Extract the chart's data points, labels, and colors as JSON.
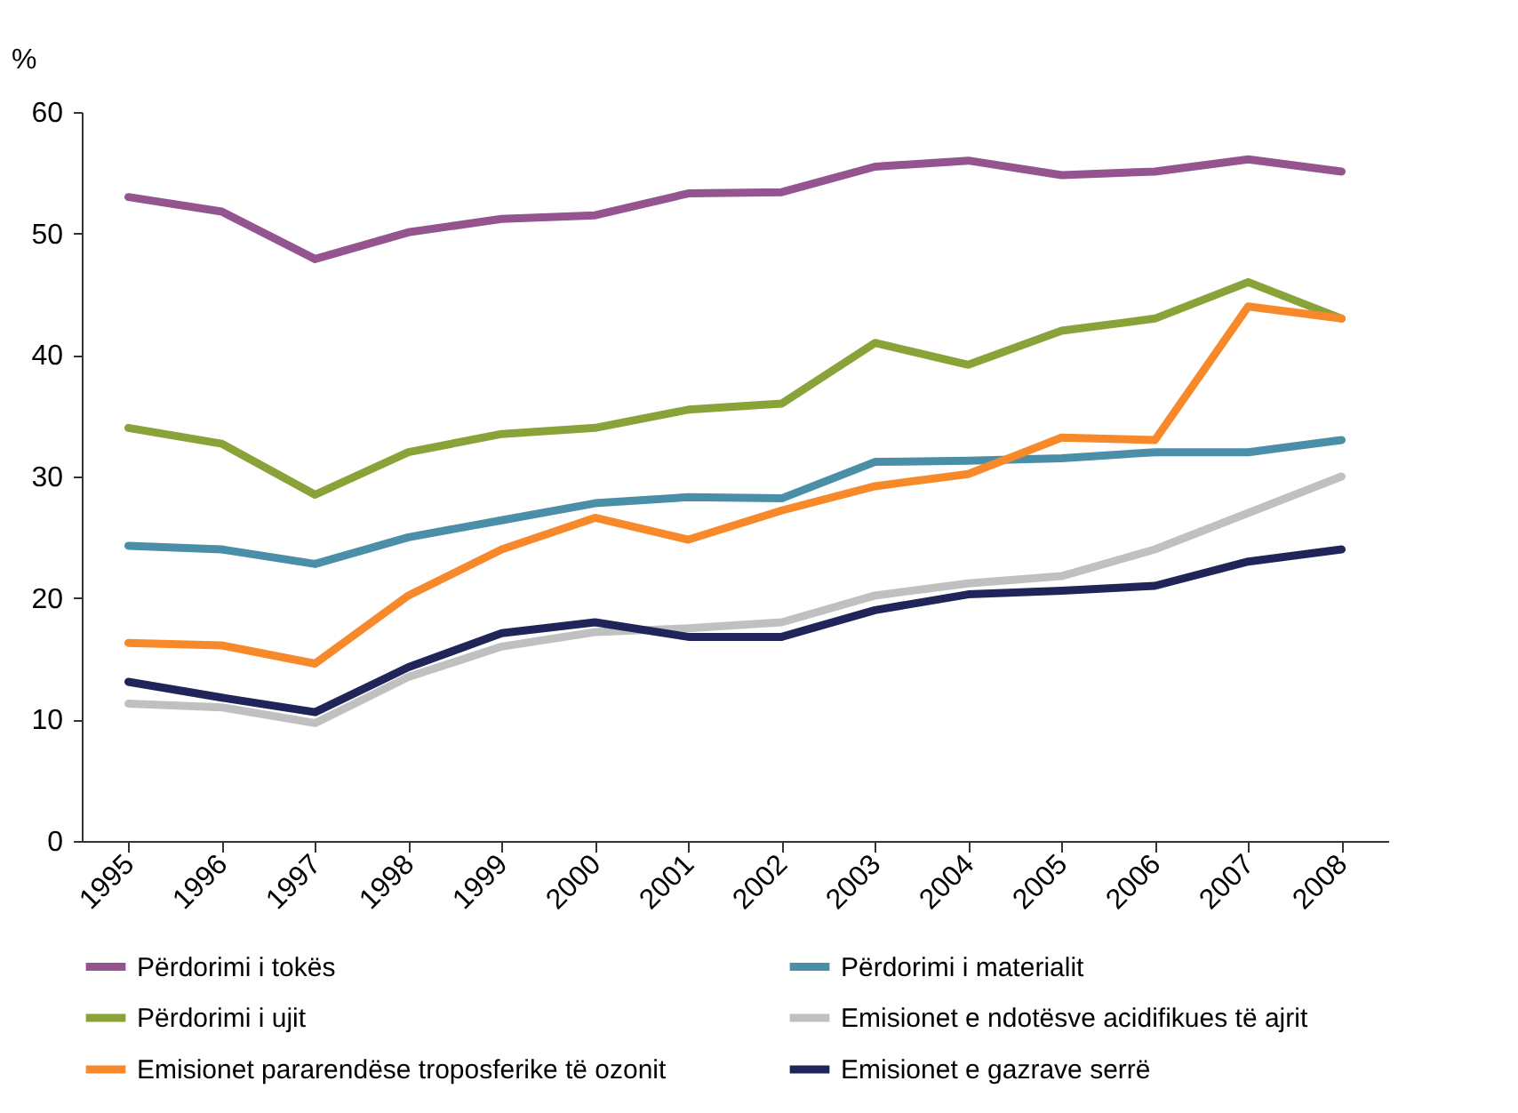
{
  "chart_data": {
    "type": "line",
    "ylabel": "%",
    "categories": [
      "1995",
      "1996",
      "1997",
      "1998",
      "1999",
      "2000",
      "2001",
      "2002",
      "2003",
      "2004",
      "2005",
      "2006",
      "2007",
      "2008"
    ],
    "ylim": [
      0,
      60
    ],
    "yticks": [
      0,
      10,
      20,
      30,
      40,
      50,
      60
    ],
    "grid": false,
    "legend": "bottom",
    "line_style": "solid",
    "series": [
      {
        "name": "Përdorimi i tokës",
        "color": "#93548f",
        "values": [
          53,
          51.8,
          47.9,
          50.1,
          51.2,
          51.5,
          53.3,
          53.4,
          55.5,
          56,
          54.8,
          55.1,
          56.1,
          55.1
        ]
      },
      {
        "name": "Përdorimi i materialit",
        "color": "#4a8fa7",
        "values": [
          24.3,
          24,
          22.8,
          25,
          26.4,
          27.8,
          28.3,
          28.2,
          31.2,
          31.3,
          31.5,
          32,
          32,
          33
        ]
      },
      {
        "name": "Përdorimi i ujit",
        "color": "#8aa339",
        "values": [
          34,
          32.7,
          28.5,
          32,
          33.5,
          34,
          35.5,
          36,
          41,
          39.2,
          42,
          43,
          46,
          43
        ]
      },
      {
        "name": "Emisionet e ndotësve acidifikues të ajrit",
        "color": "#c0c0c0",
        "values": [
          11.3,
          11,
          9.7,
          13.5,
          16,
          17.2,
          17.5,
          18,
          20.2,
          21.2,
          21.8,
          24,
          27,
          30
        ]
      },
      {
        "name": "Emisionet pararendëse troposferike të ozonit",
        "color": "#f7892a",
        "values": [
          16.3,
          16.1,
          14.6,
          20.2,
          24,
          26.6,
          24.8,
          27.2,
          29.2,
          30.2,
          33.2,
          33,
          44,
          43
        ]
      },
      {
        "name": "Emisionet e gazrave serrë",
        "color": "#1f2558",
        "values": [
          13.1,
          11.8,
          10.6,
          14.3,
          17.1,
          18,
          16.8,
          16.8,
          19,
          20.3,
          20.6,
          21,
          23,
          24
        ]
      }
    ]
  }
}
